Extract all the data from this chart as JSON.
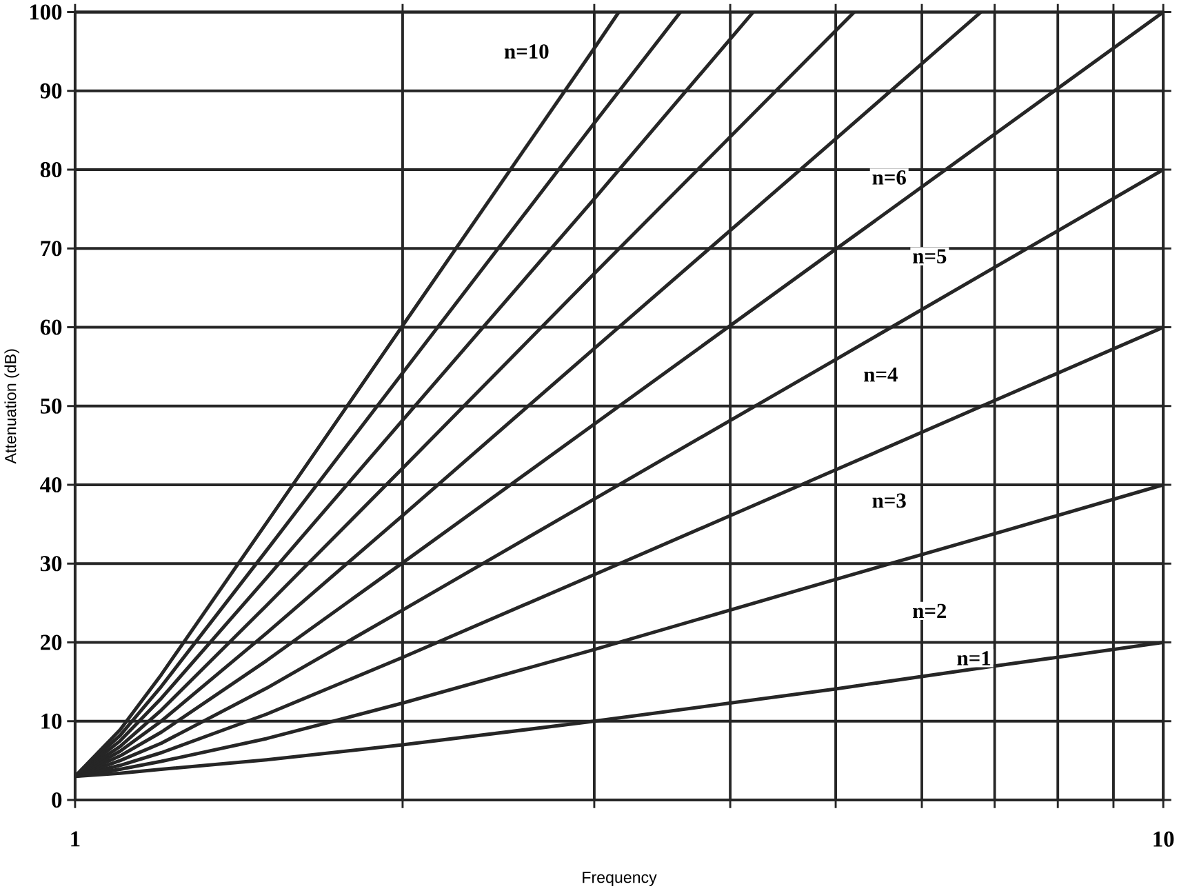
{
  "chart_data": {
    "type": "line",
    "xlabel": "Frequency",
    "ylabel": "Attenuation (dB)",
    "log": "x",
    "grid": true,
    "marker": "none",
    "line_style": "solid",
    "xlim": [
      1,
      10
    ],
    "ylim": [
      0,
      100
    ],
    "xticks": [
      1,
      {
        "value": 2,
        "label": null
      },
      {
        "value": 3,
        "label": null
      },
      {
        "value": 4,
        "label": null
      },
      {
        "value": 5,
        "label": null
      },
      {
        "value": 6,
        "label": null
      },
      {
        "value": 7,
        "label": null
      },
      {
        "value": 8,
        "label": null
      },
      {
        "value": 9,
        "label": null
      },
      10
    ],
    "yticks": [
      0,
      10,
      20,
      30,
      40,
      50,
      60,
      70,
      80,
      90,
      100
    ],
    "series": [
      {
        "color": "#262626",
        "x": [
          1,
          1.1,
          1.2,
          1.5,
          2,
          3,
          5,
          7,
          10
        ],
        "values": [
          3,
          3.4,
          3.9,
          5.1,
          7.0,
          10,
          14.1,
          17,
          20
        ]
      },
      {
        "color": "#262626",
        "x": [
          1,
          1.1,
          1.2,
          1.5,
          2,
          3,
          5,
          7,
          10
        ],
        "values": [
          3,
          3.9,
          4.9,
          7.8,
          12.3,
          19.1,
          28,
          33.8,
          40
        ]
      },
      {
        "color": "#262626",
        "x": [
          1,
          1.1,
          1.2,
          1.5,
          2,
          3,
          5,
          7,
          10
        ],
        "values": [
          3,
          4.4,
          6.0,
          10.9,
          18.1,
          28.6,
          41.9,
          50.7,
          60
        ]
      },
      {
        "color": "#262626",
        "x": [
          1,
          1.1,
          1.2,
          1.5,
          2,
          3,
          5,
          7,
          10
        ],
        "values": [
          3,
          5.0,
          7.2,
          14.2,
          24.1,
          38.2,
          55.9,
          67.6,
          80
        ]
      },
      {
        "color": "#262626",
        "x": [
          1,
          1.1,
          1.2,
          1.5,
          2,
          3,
          5,
          7,
          10
        ],
        "values": [
          3,
          5.6,
          8.6,
          17.7,
          30.1,
          47.7,
          69.9,
          84.5,
          100
        ]
      },
      {
        "color": "#262626",
        "x": [
          1,
          1.1,
          1.2,
          1.5,
          2,
          3,
          5,
          6.8
        ],
        "values": [
          3,
          6.2,
          10.0,
          21.2,
          36.1,
          57.3,
          83.9,
          100
        ]
      },
      {
        "color": "#262626",
        "x": [
          1,
          1.1,
          1.2,
          1.5,
          2,
          3,
          5.2
        ],
        "values": [
          3,
          6.8,
          11.4,
          24.7,
          42.1,
          66.8,
          100
        ]
      },
      {
        "color": "#262626",
        "x": [
          1,
          1.1,
          1.2,
          1.5,
          2,
          3,
          4.2
        ],
        "values": [
          3,
          7.5,
          12.9,
          28.2,
          48.2,
          76.3,
          100
        ]
      },
      {
        "color": "#262626",
        "x": [
          1,
          1.1,
          1.2,
          1.5,
          2,
          3,
          3.6
        ],
        "values": [
          3,
          8.2,
          14.4,
          31.7,
          54.2,
          85.9,
          100
        ]
      },
      {
        "color": "#262626",
        "x": [
          1,
          1.1,
          1.2,
          1.5,
          2,
          3,
          3.16
        ],
        "values": [
          3,
          8.9,
          15.9,
          35.2,
          60.2,
          95.4,
          100
        ]
      }
    ],
    "annotations": [
      {
        "text": "n=1",
        "x": 6.7,
        "y": 18
      },
      {
        "text": "n=2",
        "x": 6.1,
        "y": 24
      },
      {
        "text": "n=3",
        "x": 5.6,
        "y": 38
      },
      {
        "text": "n=4",
        "x": 5.5,
        "y": 54
      },
      {
        "text": "n=5",
        "x": 6.1,
        "y": 69
      },
      {
        "text": "n=6",
        "x": 5.6,
        "y": 79
      },
      {
        "text": "n=10",
        "x": 2.6,
        "y": 95
      }
    ]
  }
}
